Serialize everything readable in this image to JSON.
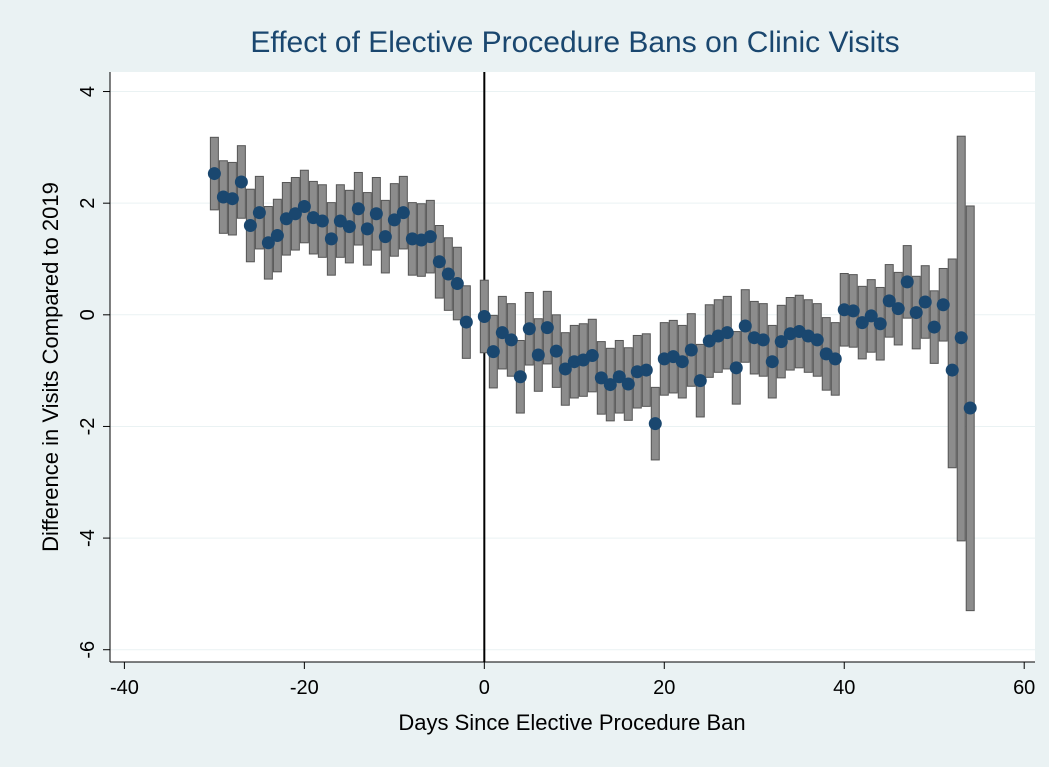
{
  "chart_data": {
    "type": "errorbar_scatter",
    "title": "Effect of Elective Procedure Bans on Clinic Visits",
    "x_label": "Days Since Elective Procedure Ban",
    "y_label": "Difference in Visits Compared to 2019",
    "x": [
      -30,
      -29,
      -28,
      -27,
      -26,
      -25,
      -24,
      -23,
      -22,
      -21,
      -20,
      -19,
      -18,
      -17,
      -16,
      -15,
      -14,
      -13,
      -12,
      -11,
      -10,
      -9,
      -8,
      -7,
      -6,
      -5,
      -4,
      -3,
      -2,
      0,
      1,
      2,
      3,
      4,
      5,
      6,
      7,
      8,
      9,
      10,
      11,
      12,
      13,
      14,
      15,
      16,
      17,
      18,
      19,
      20,
      21,
      22,
      23,
      24,
      25,
      26,
      27,
      28,
      29,
      30,
      31,
      32,
      33,
      34,
      35,
      36,
      37,
      38,
      39,
      40,
      41,
      42,
      43,
      44,
      45,
      46,
      47,
      48,
      49,
      50,
      51,
      52,
      53,
      54
    ],
    "series": [
      {
        "color": "#1a476f",
        "bar_color": "#8c8c8c",
        "values": [
          2.53,
          2.11,
          2.08,
          2.38,
          1.6,
          1.83,
          1.29,
          1.42,
          1.72,
          1.81,
          1.94,
          1.74,
          1.68,
          1.36,
          1.68,
          1.58,
          1.9,
          1.54,
          1.81,
          1.4,
          1.7,
          1.83,
          1.36,
          1.34,
          1.4,
          0.95,
          0.73,
          0.56,
          -0.13,
          -0.03,
          -0.66,
          -0.32,
          -0.45,
          -1.11,
          -0.25,
          -0.72,
          -0.23,
          -0.65,
          -0.97,
          -0.84,
          -0.81,
          -0.73,
          -1.13,
          -1.25,
          -1.11,
          -1.24,
          -1.02,
          -0.99,
          -1.95,
          -0.79,
          -0.75,
          -0.84,
          -0.63,
          -1.18,
          -0.47,
          -0.38,
          -0.32,
          -0.95,
          -0.2,
          -0.41,
          -0.45,
          -0.84,
          -0.48,
          -0.34,
          -0.3,
          -0.38,
          -0.45,
          -0.7,
          -0.79,
          0.09,
          0.07,
          -0.14,
          -0.02,
          -0.16,
          0.25,
          0.11,
          0.59,
          0.04,
          0.23,
          -0.22,
          0.18,
          -0.99,
          -0.41,
          -1.67
        ],
        "lower": [
          1.88,
          1.46,
          1.43,
          1.73,
          0.95,
          1.18,
          0.64,
          0.77,
          1.07,
          1.16,
          1.29,
          1.09,
          1.03,
          0.71,
          1.03,
          0.93,
          1.25,
          0.89,
          1.16,
          0.75,
          1.05,
          1.18,
          0.71,
          0.69,
          0.75,
          0.3,
          0.08,
          -0.09,
          -0.78,
          -0.68,
          -1.31,
          -0.97,
          -1.1,
          -1.76,
          -0.9,
          -1.37,
          -0.88,
          -1.3,
          -1.62,
          -1.49,
          -1.46,
          -1.38,
          -1.78,
          -1.9,
          -1.76,
          -1.89,
          -1.67,
          -1.64,
          -2.6,
          -1.44,
          -1.4,
          -1.49,
          -1.28,
          -1.83,
          -1.12,
          -1.03,
          -0.97,
          -1.6,
          -0.85,
          -1.06,
          -1.1,
          -1.49,
          -1.13,
          -0.99,
          -0.95,
          -1.03,
          -1.1,
          -1.35,
          -1.44,
          -0.56,
          -0.58,
          -0.79,
          -0.67,
          -0.81,
          -0.4,
          -0.54,
          -0.06,
          -0.61,
          -0.42,
          -0.87,
          -0.47,
          -2.74,
          -4.05,
          -5.3
        ],
        "upper": [
          3.18,
          2.76,
          2.73,
          3.03,
          2.25,
          2.48,
          1.94,
          2.07,
          2.37,
          2.46,
          2.59,
          2.39,
          2.33,
          2.01,
          2.33,
          2.23,
          2.55,
          2.19,
          2.46,
          2.05,
          2.35,
          2.48,
          2.01,
          1.99,
          2.05,
          1.6,
          1.38,
          1.21,
          0.52,
          0.62,
          -0.01,
          0.33,
          0.2,
          -0.46,
          0.4,
          -0.07,
          0.42,
          0,
          -0.32,
          -0.19,
          -0.16,
          -0.08,
          -0.48,
          -0.6,
          -0.46,
          -0.59,
          -0.37,
          -0.34,
          -1.3,
          -0.14,
          -0.1,
          -0.19,
          0.02,
          -0.53,
          0.18,
          0.27,
          0.33,
          -0.3,
          0.45,
          0.24,
          0.2,
          -0.19,
          0.17,
          0.31,
          0.35,
          0.27,
          0.2,
          -0.05,
          -0.14,
          0.74,
          0.72,
          0.51,
          0.63,
          0.49,
          0.9,
          0.76,
          1.24,
          0.69,
          0.88,
          0.43,
          0.83,
          1.0,
          3.2,
          1.95
        ]
      }
    ],
    "xlim": [
      -41.6,
      61.2
    ],
    "ylim": [
      -6.22,
      4.35
    ],
    "xticks": [
      -40,
      -20,
      0,
      20,
      40,
      60
    ],
    "yticks": [
      -6,
      -4,
      -2,
      0,
      2,
      4
    ],
    "xline": 0,
    "grid": true
  }
}
